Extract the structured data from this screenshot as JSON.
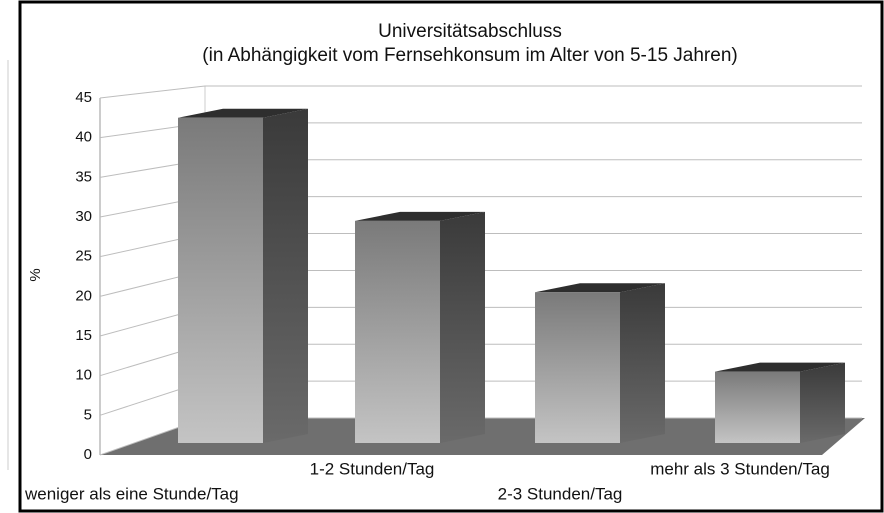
{
  "chart_data": {
    "type": "bar3d",
    "title": "Universitätsabschluss",
    "subtitle": "(in Abhängigkeit vom Fernsehkonsum im Alter von 5-15 Jahren)",
    "y_label": "%",
    "categories": [
      "weniger als eine Stunde/Tag",
      "1-2 Stunden/Tag",
      "2-3 Stunden/Tag",
      "mehr als 3 Stunden/Tag"
    ],
    "values": [
      41,
      28,
      19,
      9
    ],
    "color": "#9a9a9a",
    "ylim": [
      0,
      45
    ],
    "yticks": [
      0,
      5,
      10,
      15,
      20,
      25,
      30,
      35,
      40,
      45
    ],
    "grid": true
  }
}
